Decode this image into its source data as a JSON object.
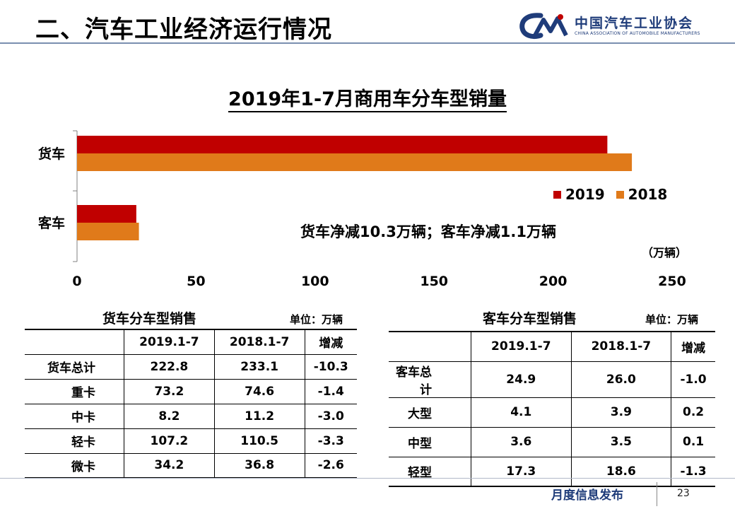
{
  "header": {
    "title": "二、汽车工业经济运行情况",
    "logo_cn": "中国汽车工业协会",
    "logo_en": "CHINA ASSOCIATION OF AUTOMOBILE MANUFACTURERS"
  },
  "chart_data": {
    "type": "bar",
    "orientation": "horizontal",
    "title": "2019年1-7月商用车分车型销量",
    "categories": [
      "货车",
      "客车"
    ],
    "series": [
      {
        "name": "2019",
        "values": [
          222.8,
          24.9
        ],
        "color": "#c00000"
      },
      {
        "name": "2018",
        "values": [
          233.1,
          26.0
        ],
        "color": "#e07a1a"
      }
    ],
    "xlim": [
      0,
      250
    ],
    "xticks": [
      "0",
      "50",
      "100",
      "150",
      "200",
      "250"
    ],
    "unit": "（万辆）",
    "annotation": "货车净减10.3万辆；客车净减1.1万辆",
    "legend_position": "right",
    "grid": false
  },
  "truck_table": {
    "title": "货车分车型销售",
    "unit": "单位：万辆",
    "headers": [
      "",
      "2019.1-7",
      "2018.1-7",
      "增减"
    ],
    "rows": [
      [
        "货车总计",
        "222.8",
        "233.1",
        "-10.3"
      ],
      [
        "重卡",
        "73.2",
        "74.6",
        "-1.4"
      ],
      [
        "中卡",
        "8.2",
        "11.2",
        "-3.0"
      ],
      [
        "轻卡",
        "107.2",
        "110.5",
        "-3.3"
      ],
      [
        "微卡",
        "34.2",
        "36.8",
        "-2.6"
      ]
    ]
  },
  "bus_table": {
    "title": "客车分车型销售",
    "unit": "单位：万辆",
    "headers": [
      "",
      "2019.1-7",
      "2018.1-7",
      "增减"
    ],
    "rows": [
      [
        "客车总计",
        "24.9",
        "26.0",
        "-1.0"
      ],
      [
        "大型",
        "4.1",
        "3.9",
        "0.2"
      ],
      [
        "中型",
        "3.6",
        "3.5",
        "0.1"
      ],
      [
        "轻型",
        "17.3",
        "18.6",
        "-1.3"
      ]
    ]
  },
  "footer": {
    "label": "月度信息发布",
    "page": "23"
  }
}
